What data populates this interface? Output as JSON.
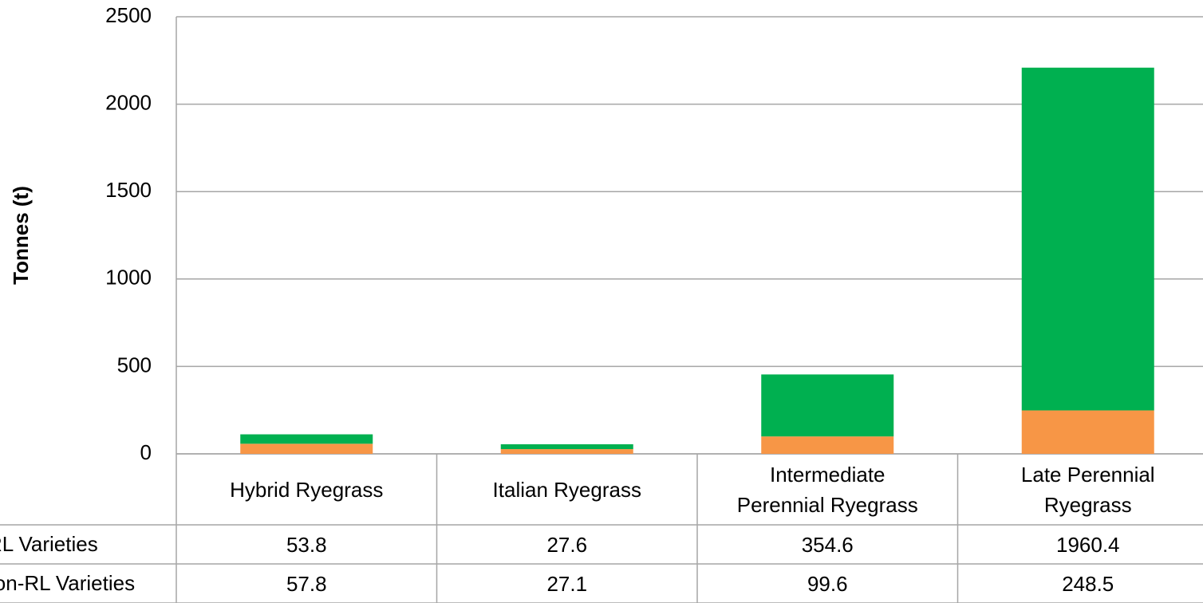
{
  "chart_data": {
    "type": "stacked_bar",
    "y_axis_label": "Tonnes (t)",
    "categories": [
      "Hybrid Ryegrass",
      "Italian Ryegrass",
      "Intermediate Perennial Ryegrass",
      "Late Perennial Ryegrass"
    ],
    "series": [
      {
        "name": "RL Varieties",
        "color": "#00b050",
        "values": [
          53.8,
          27.6,
          354.6,
          1960.4
        ]
      },
      {
        "name": "Non-RL Varieties",
        "color": "#f79646",
        "values": [
          57.8,
          27.1,
          99.6,
          248.5
        ]
      }
    ],
    "ylim": [
      0,
      2500
    ],
    "yticks": [
      0,
      500,
      1000,
      1500,
      2000,
      2500
    ],
    "grid": true
  }
}
